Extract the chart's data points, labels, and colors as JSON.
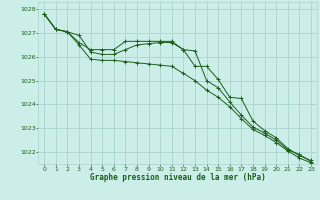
{
  "title": "Graphe pression niveau de la mer (hPa)",
  "bg_color": "#cceee8",
  "grid_color": "#aad4ce",
  "line_color": "#1a5e1a",
  "x_min": -0.5,
  "x_max": 23.5,
  "y_min": 1021.5,
  "y_max": 1028.3,
  "yticks": [
    1022,
    1023,
    1024,
    1025,
    1026,
    1027,
    1028
  ],
  "xticks": [
    0,
    1,
    2,
    3,
    4,
    5,
    6,
    7,
    8,
    9,
    10,
    11,
    12,
    13,
    14,
    15,
    16,
    17,
    18,
    19,
    20,
    21,
    22,
    23
  ],
  "series": [
    {
      "x": [
        0,
        1,
        2,
        3,
        4,
        5,
        6,
        7,
        8,
        9,
        10,
        11,
        12,
        13,
        14,
        15,
        16,
        17,
        18,
        19,
        20,
        21,
        22,
        23
      ],
      "y": [
        1027.8,
        1027.15,
        1027.05,
        1026.6,
        1026.3,
        1026.3,
        1026.3,
        1026.65,
        1026.65,
        1026.65,
        1026.65,
        1026.65,
        1026.3,
        1025.6,
        1025.6,
        1025.05,
        1024.3,
        1024.25,
        1023.3,
        1022.9,
        1022.6,
        1022.15,
        1021.85,
        1021.65
      ],
      "marker": "+"
    },
    {
      "x": [
        0,
        1,
        2,
        3,
        4,
        5,
        6,
        7,
        8,
        9,
        10,
        11,
        12,
        13,
        14,
        15,
        16,
        17,
        18,
        19,
        20,
        21,
        22,
        23
      ],
      "y": [
        1027.8,
        1027.15,
        1027.05,
        1026.9,
        1026.2,
        1026.1,
        1026.1,
        1026.3,
        1026.5,
        1026.55,
        1026.6,
        1026.6,
        1026.3,
        1026.25,
        1025.0,
        1024.7,
        1024.1,
        1023.55,
        1023.05,
        1022.8,
        1022.5,
        1022.1,
        1021.9,
        1021.6
      ],
      "marker": "+"
    },
    {
      "x": [
        0,
        1,
        2,
        3,
        4,
        5,
        6,
        7,
        8,
        9,
        10,
        11,
        12,
        13,
        14,
        15,
        16,
        17,
        18,
        19,
        20,
        21,
        22,
        23
      ],
      "y": [
        1027.8,
        1027.15,
        1027.05,
        1026.5,
        1025.9,
        1025.85,
        1025.85,
        1025.8,
        1025.75,
        1025.7,
        1025.65,
        1025.6,
        1025.3,
        1025.0,
        1024.6,
        1024.3,
        1023.9,
        1023.4,
        1022.95,
        1022.7,
        1022.4,
        1022.05,
        1021.75,
        1021.55
      ],
      "marker": "+"
    }
  ]
}
